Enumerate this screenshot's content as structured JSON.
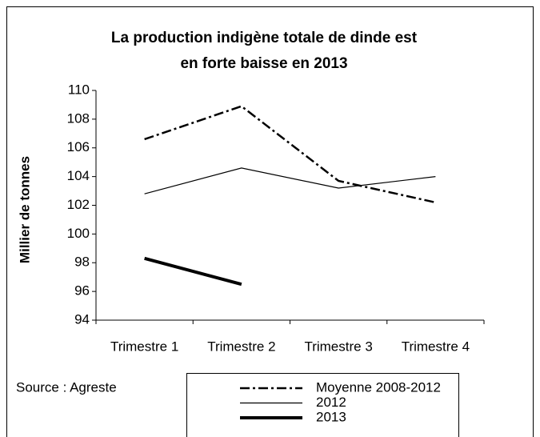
{
  "chart_data": {
    "type": "line",
    "title": [
      "La production indigène totale de dinde  est",
      "en forte baisse en 2013"
    ],
    "y_label": "Millier de tonnes",
    "annotation": "Source : Agreste",
    "categories": [
      "Trimestre 1",
      "Trimestre 2",
      "Trimestre 3",
      "Trimestre 4"
    ],
    "series": [
      {
        "name": "Moyenne 2008-2012",
        "color": "#000000",
        "dash": "12,4,3,4",
        "width": 2.5,
        "values": [
          106.6,
          108.9,
          103.7,
          102.2
        ]
      },
      {
        "name": "2012",
        "color": "#000000",
        "dash": "none",
        "width": 1.2,
        "values": [
          102.8,
          104.6,
          103.2,
          104.0
        ]
      },
      {
        "name": "2013",
        "color": "#000000",
        "dash": "none",
        "width": 4,
        "values": [
          98.3,
          96.5,
          null,
          null
        ]
      }
    ],
    "ylim": [
      94,
      110
    ],
    "yticks": [
      94,
      96,
      98,
      100,
      102,
      104,
      106,
      108,
      110
    ],
    "grid": false
  }
}
